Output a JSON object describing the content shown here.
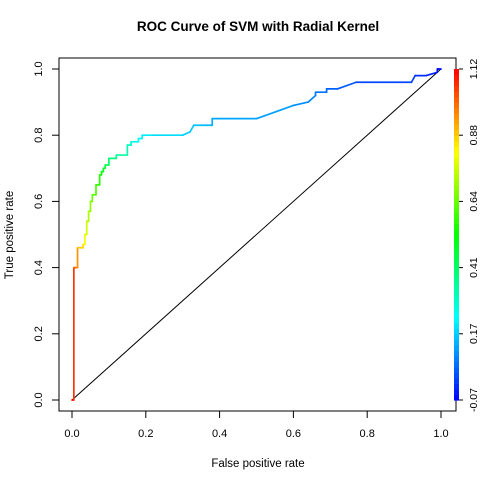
{
  "chart_data": {
    "type": "line",
    "title": "ROC Curve of SVM with Radial Kernel",
    "xlabel": "False positive rate",
    "ylabel": "True positive rate",
    "xlim": [
      0,
      1
    ],
    "ylim": [
      0,
      1
    ],
    "xticks": [
      "0.0",
      "0.2",
      "0.4",
      "0.6",
      "0.8",
      "1.0"
    ],
    "yticks": [
      "0.0",
      "0.2",
      "0.4",
      "0.6",
      "0.8",
      "1.0"
    ],
    "grid": false,
    "legend": "none",
    "series": [
      {
        "x": [
          0.0,
          0.005,
          0.005,
          0.015,
          0.015,
          0.03,
          0.03,
          0.035,
          0.035,
          0.04,
          0.04,
          0.045,
          0.045,
          0.05,
          0.05,
          0.055,
          0.055,
          0.065,
          0.065,
          0.075,
          0.075,
          0.08,
          0.08,
          0.085,
          0.085,
          0.09,
          0.09,
          0.1,
          0.1,
          0.12,
          0.12,
          0.15,
          0.15,
          0.16,
          0.16,
          0.17,
          0.17,
          0.18,
          0.18,
          0.19,
          0.19,
          0.22,
          0.22,
          0.3,
          0.32,
          0.33,
          0.36,
          0.38,
          0.38,
          0.5,
          0.6,
          0.6,
          0.64,
          0.66,
          0.66,
          0.69,
          0.69,
          0.72,
          0.77,
          0.77,
          0.92,
          0.93,
          0.93,
          0.96,
          0.99,
          0.99,
          1.0
        ],
        "y": [
          0.0,
          0.0,
          0.4,
          0.4,
          0.46,
          0.46,
          0.47,
          0.47,
          0.5,
          0.5,
          0.54,
          0.54,
          0.57,
          0.57,
          0.6,
          0.6,
          0.62,
          0.62,
          0.65,
          0.65,
          0.68,
          0.68,
          0.69,
          0.69,
          0.7,
          0.7,
          0.71,
          0.71,
          0.73,
          0.73,
          0.74,
          0.74,
          0.77,
          0.77,
          0.78,
          0.78,
          0.78,
          0.78,
          0.79,
          0.79,
          0.8,
          0.8,
          0.8,
          0.8,
          0.81,
          0.83,
          0.83,
          0.83,
          0.85,
          0.85,
          0.89,
          0.89,
          0.9,
          0.92,
          0.93,
          0.93,
          0.94,
          0.94,
          0.96,
          0.96,
          0.96,
          0.98,
          0.98,
          0.98,
          0.99,
          1.0,
          1.0
        ],
        "colors_by_threshold": true
      },
      {
        "x": [
          0,
          1
        ],
        "y": [
          0,
          1
        ],
        "color": "#000000"
      }
    ],
    "colorbar": {
      "ticks": [
        "-0.07",
        "0.17",
        "0.41",
        "0.64",
        "0.88",
        "1.12"
      ],
      "colors": [
        "#0000ff",
        "#0080ff",
        "#00ffff",
        "#00ff80",
        "#00ff00",
        "#80ff00",
        "#ffff00",
        "#ff8000",
        "#ff0000"
      ]
    },
    "point_thresholds": [
      1.12,
      1.12,
      1.0,
      1.0,
      0.9,
      0.88,
      0.85,
      0.83,
      0.8,
      0.78,
      0.76,
      0.74,
      0.72,
      0.7,
      0.68,
      0.66,
      0.64,
      0.62,
      0.6,
      0.58,
      0.56,
      0.54,
      0.52,
      0.5,
      0.48,
      0.46,
      0.44,
      0.42,
      0.4,
      0.37,
      0.35,
      0.33,
      0.31,
      0.29,
      0.27,
      0.26,
      0.25,
      0.24,
      0.23,
      0.22,
      0.21,
      0.2,
      0.19,
      0.18,
      0.17,
      0.16,
      0.15,
      0.14,
      0.13,
      0.12,
      0.11,
      0.1,
      0.09,
      0.08,
      0.07,
      0.06,
      0.05,
      0.04,
      0.03,
      0.02,
      0.01,
      0.0,
      -0.01,
      -0.02,
      -0.04,
      -0.06,
      -0.07
    ]
  }
}
